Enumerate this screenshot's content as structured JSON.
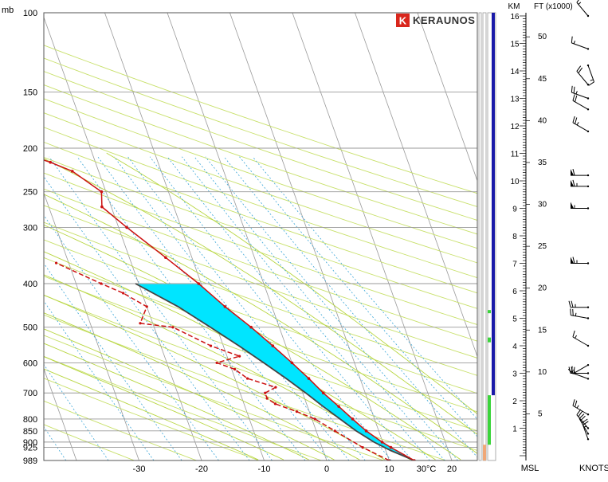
{
  "brand": {
    "name": "KERAUNOS",
    "logo_letter": "K",
    "color": "#d9261c"
  },
  "chart_data": {
    "type": "skew-t",
    "title": "",
    "pressure_unit": "mb",
    "temperature_unit_label": "30°C",
    "pressure_ticks": [
      100,
      150,
      200,
      250,
      300,
      400,
      500,
      600,
      700,
      800,
      850,
      900,
      925,
      989
    ],
    "temperature_ticks": [
      -30,
      -20,
      -10,
      0,
      10,
      20
    ],
    "ylim_mb": [
      989,
      100
    ],
    "temperature_profile": [
      {
        "p": 989,
        "t": 14.0
      },
      {
        "p": 925,
        "t": 11.0
      },
      {
        "p": 900,
        "t": 9.9
      },
      {
        "p": 850,
        "t": 8.0
      },
      {
        "p": 800,
        "t": 6.5
      },
      {
        "p": 750,
        "t": 5.0
      },
      {
        "p": 700,
        "t": 3.3
      },
      {
        "p": 650,
        "t": 1.8
      },
      {
        "p": 600,
        "t": 0.0
      },
      {
        "p": 550,
        "t": -2.1
      },
      {
        "p": 500,
        "t": -4.5
      },
      {
        "p": 450,
        "t": -7.5
      },
      {
        "p": 400,
        "t": -10.4
      },
      {
        "p": 350,
        "t": -14.2
      },
      {
        "p": 300,
        "t": -18.7
      },
      {
        "p": 270,
        "t": -21.5
      },
      {
        "p": 250,
        "t": -20.7
      },
      {
        "p": 225,
        "t": -24.2
      },
      {
        "p": 215,
        "t": -27.2
      },
      {
        "p": 200,
        "t": -33.0
      },
      {
        "p": 180,
        "t": -38.0
      },
      {
        "p": 160,
        "t": -41.8
      },
      {
        "p": 150,
        "t": -42.6
      },
      {
        "p": 130,
        "t": -43.0
      },
      {
        "p": 125,
        "t": -47.8
      },
      {
        "p": 118,
        "t": -48.8
      },
      {
        "p": 100,
        "t": -56.0
      }
    ],
    "dewpoint_profile": [
      {
        "p": 989,
        "t": 10.0
      },
      {
        "p": 925,
        "t": 6.5
      },
      {
        "p": 850,
        "t": 3.0
      },
      {
        "p": 800,
        "t": 0.5
      },
      {
        "p": 770,
        "t": -2.0
      },
      {
        "p": 740,
        "t": -5.0
      },
      {
        "p": 720,
        "t": -6.0
      },
      {
        "p": 700,
        "t": -6.0
      },
      {
        "p": 680,
        "t": -4.0
      },
      {
        "p": 650,
        "t": -8.0
      },
      {
        "p": 620,
        "t": -9.5
      },
      {
        "p": 600,
        "t": -12.0
      },
      {
        "p": 580,
        "t": -8.0
      },
      {
        "p": 550,
        "t": -12.0
      },
      {
        "p": 500,
        "t": -17.0
      },
      {
        "p": 490,
        "t": -22.0
      },
      {
        "p": 450,
        "t": -20.0
      },
      {
        "p": 420,
        "t": -23.0
      },
      {
        "p": 400,
        "t": -26.0
      },
      {
        "p": 360,
        "t": -32.0
      }
    ],
    "parcel_profile": [
      {
        "p": 989,
        "t": 14.0
      },
      {
        "p": 940,
        "t": 10.8
      },
      {
        "p": 900,
        "t": 8.6
      },
      {
        "p": 850,
        "t": 6.4
      },
      {
        "p": 800,
        "t": 4.5
      },
      {
        "p": 750,
        "t": 2.5
      },
      {
        "p": 700,
        "t": 0.5
      },
      {
        "p": 650,
        "t": -1.8
      },
      {
        "p": 600,
        "t": -4.5
      },
      {
        "p": 550,
        "t": -7.5
      },
      {
        "p": 500,
        "t": -11.0
      },
      {
        "p": 450,
        "t": -15.0
      },
      {
        "p": 400,
        "t": -20.5
      }
    ],
    "height_axis": {
      "label_km": "KM",
      "label_ft": "FT (x1000)",
      "km_ticks": [
        1,
        2,
        3,
        4,
        5,
        6,
        7,
        8,
        9,
        10,
        11,
        12,
        13,
        14,
        15,
        16
      ],
      "ft_ticks": [
        5,
        10,
        15,
        20,
        25,
        30,
        35,
        40,
        45,
        50
      ],
      "bottom_label": "MSL"
    },
    "wind_axis": {
      "label": "KNOTS",
      "barbs": [
        {
          "km": 0.6,
          "dir": 340,
          "kt": 25
        },
        {
          "km": 0.8,
          "dir": 330,
          "kt": 25
        },
        {
          "km": 1.0,
          "dir": 320,
          "kt": 20
        },
        {
          "km": 1.5,
          "dir": 300,
          "kt": 25
        },
        {
          "km": 2.8,
          "dir": 290,
          "kt": 20
        },
        {
          "km": 3.0,
          "dir": 270,
          "kt": 20
        },
        {
          "km": 3.3,
          "dir": 240,
          "kt": 15
        },
        {
          "km": 4.0,
          "dir": 300,
          "kt": 15
        },
        {
          "km": 5.0,
          "dir": 280,
          "kt": 25
        },
        {
          "km": 5.4,
          "dir": 270,
          "kt": 25
        },
        {
          "km": 7.0,
          "dir": 270,
          "kt": 65
        },
        {
          "km": 9.0,
          "dir": 270,
          "kt": 55
        },
        {
          "km": 9.8,
          "dir": 270,
          "kt": 65
        },
        {
          "km": 10.2,
          "dir": 270,
          "kt": 60
        },
        {
          "km": 11.8,
          "dir": 300,
          "kt": 25
        },
        {
          "km": 12.6,
          "dir": 300,
          "kt": 20
        },
        {
          "km": 13.0,
          "dir": 290,
          "kt": 25
        },
        {
          "km": 13.5,
          "dir": 320,
          "kt": 20
        },
        {
          "km": 14.2,
          "dir": 160,
          "kt": 15
        },
        {
          "km": 14.8,
          "dir": 290,
          "kt": 15
        },
        {
          "km": 16.0,
          "dir": 320,
          "kt": 15
        }
      ]
    },
    "colors": {
      "temperature": "#cc1111",
      "parcel": "#444444",
      "cape_fill": "#ff0000",
      "cin_fill": "#00e5ff",
      "isobar": "#9a9a9a",
      "isotherm": "#9a9a9a",
      "dry_adiabat": "#c8e06a",
      "moist_adiabat": "#b8d640",
      "mixing_ratio": "#3aa6d8",
      "column_blue": "#1a1aa8",
      "column_green": "#3bd43b",
      "column_orange": "#f0a878"
    }
  }
}
